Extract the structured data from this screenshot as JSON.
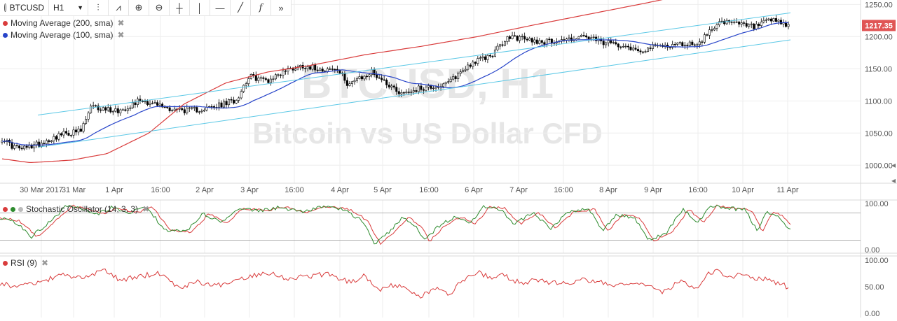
{
  "toolbar": {
    "symbol": "BTCUSD",
    "interval": "H1",
    "tools": [
      "bar-style-icon",
      "indicators-icon",
      "zoom-in-icon",
      "zoom-out-icon",
      "crosshair-icon",
      "vertical-line-icon",
      "horizontal-line-icon",
      "trend-line-icon",
      "fibonacci-icon",
      "forward-icon"
    ]
  },
  "legend": {
    "ma200": "Moving Average (200, sma)",
    "ma100": "Moving Average (100, sma)",
    "stoch": "Stochastic Oscillator (14, 3, 3)",
    "rsi": "RSI (9)",
    "close": "✖"
  },
  "watermark": {
    "line1": "BTCUSD, H1",
    "line2": "Bitcoin vs US Dollar CFD"
  },
  "colors": {
    "candle_up": "#ffffff",
    "candle_down": "#000000",
    "ma200": "#d93c3c",
    "ma100": "#2744c9",
    "channel": "#5bc8e6",
    "stoch_k": "#2e8b2e",
    "stoch_d": "#d93c3c",
    "rsi": "#d93c3c",
    "price_tag": "#e05555",
    "grid": "#eeeeee"
  },
  "chart_data": [
    {
      "type": "candlestick",
      "symbol": "BTCUSD",
      "interval": "H1",
      "x_labels": [
        "30 Mar 2017",
        "31 Mar",
        "1 Apr",
        "16:00",
        "2 Apr",
        "3 Apr",
        "16:00",
        "4 Apr",
        "5 Apr",
        "16:00",
        "6 Apr",
        "7 Apr",
        "16:00",
        "8 Apr",
        "9 Apr",
        "16:00",
        "10 Apr",
        "11 Apr"
      ],
      "y_ticks": [
        1000,
        1050,
        1100,
        1150,
        1200,
        1250
      ],
      "y_tick_labels": [
        "1000.00",
        "1050.00",
        "1100.00",
        "1150.00",
        "1200.00",
        "1250.00"
      ],
      "ylim": [
        972,
        1257
      ],
      "last_price": 1217.35,
      "last_price_label": "1217.35",
      "price_anchors": [
        [
          0,
          1042
        ],
        [
          4,
          1030
        ],
        [
          8,
          1025
        ],
        [
          16,
          1035
        ],
        [
          24,
          1048
        ],
        [
          32,
          1053
        ],
        [
          36,
          1090
        ],
        [
          48,
          1085
        ],
        [
          56,
          1102
        ],
        [
          62,
          1095
        ],
        [
          68,
          1088
        ],
        [
          76,
          1085
        ],
        [
          86,
          1090
        ],
        [
          95,
          1102
        ],
        [
          100,
          1138
        ],
        [
          108,
          1132
        ],
        [
          115,
          1148
        ],
        [
          122,
          1155
        ],
        [
          130,
          1150
        ],
        [
          136,
          1148
        ],
        [
          140,
          1128
        ],
        [
          146,
          1135
        ],
        [
          150,
          1145
        ],
        [
          156,
          1128
        ],
        [
          162,
          1112
        ],
        [
          170,
          1120
        ],
        [
          180,
          1125
        ],
        [
          190,
          1158
        ],
        [
          198,
          1170
        ],
        [
          206,
          1200
        ],
        [
          214,
          1195
        ],
        [
          220,
          1192
        ],
        [
          228,
          1195
        ],
        [
          236,
          1200
        ],
        [
          244,
          1190
        ],
        [
          252,
          1188
        ],
        [
          258,
          1178
        ],
        [
          266,
          1185
        ],
        [
          275,
          1188
        ],
        [
          283,
          1190
        ],
        [
          290,
          1222
        ],
        [
          298,
          1220
        ],
        [
          305,
          1215
        ],
        [
          312,
          1225
        ],
        [
          318,
          1218
        ]
      ],
      "candle_count": 320,
      "ma200_anchors": [
        [
          0,
          1010
        ],
        [
          40,
          1004
        ],
        [
          100,
          1008
        ],
        [
          150,
          1018
        ],
        [
          210,
          1050
        ],
        [
          260,
          1095
        ],
        [
          320,
          1128
        ],
        [
          380,
          1145
        ],
        [
          440,
          1155
        ],
        [
          520,
          1172
        ],
        [
          600,
          1185
        ],
        [
          680,
          1200
        ],
        [
          760,
          1218
        ],
        [
          840,
          1235
        ],
        [
          920,
          1252
        ],
        [
          1000,
          1270
        ],
        [
          1128,
          1300
        ]
      ],
      "channel_upper": {
        "from": [
          1053,
          1078
        ],
        "to": [
          1255,
          1237
        ]
      },
      "channel_lower": {
        "from": [
          1053,
          1028
        ],
        "to": [
          1255,
          1195
        ]
      },
      "series": [
        {
          "name": "Moving Average (200, sma)",
          "color": "#d93c3c"
        },
        {
          "name": "Moving Average (100, sma)",
          "color": "#2744c9"
        }
      ]
    },
    {
      "type": "line",
      "name": "Stochastic Oscillator (14, 3, 3)",
      "y_ticks": [
        0,
        100
      ],
      "y_tick_labels": [
        "0.00",
        "100.00"
      ],
      "levels": [
        20,
        80
      ],
      "ylim": [
        -8,
        108
      ],
      "k_anchors": [
        [
          0,
          68
        ],
        [
          20,
          62
        ],
        [
          45,
          28
        ],
        [
          70,
          60
        ],
        [
          95,
          95
        ],
        [
          120,
          88
        ],
        [
          140,
          78
        ],
        [
          160,
          92
        ],
        [
          185,
          80
        ],
        [
          210,
          92
        ],
        [
          235,
          42
        ],
        [
          265,
          38
        ],
        [
          290,
          78
        ],
        [
          315,
          58
        ],
        [
          340,
          90
        ],
        [
          370,
          85
        ],
        [
          400,
          92
        ],
        [
          430,
          82
        ],
        [
          460,
          93
        ],
        [
          490,
          88
        ],
        [
          515,
          65
        ],
        [
          535,
          12
        ],
        [
          555,
          38
        ],
        [
          575,
          70
        ],
        [
          595,
          48
        ],
        [
          605,
          18
        ],
        [
          625,
          50
        ],
        [
          650,
          72
        ],
        [
          670,
          55
        ],
        [
          690,
          92
        ],
        [
          712,
          90
        ],
        [
          735,
          55
        ],
        [
          760,
          82
        ],
        [
          785,
          45
        ],
        [
          810,
          82
        ],
        [
          840,
          88
        ],
        [
          860,
          40
        ],
        [
          880,
          75
        ],
        [
          905,
          70
        ],
        [
          925,
          20
        ],
        [
          950,
          35
        ],
        [
          975,
          88
        ],
        [
          995,
          58
        ],
        [
          1015,
          95
        ],
        [
          1040,
          90
        ],
        [
          1065,
          86
        ],
        [
          1080,
          40
        ],
        [
          1095,
          82
        ],
        [
          1110,
          72
        ],
        [
          1128,
          42
        ]
      ]
    },
    {
      "type": "line",
      "name": "RSI (9)",
      "y_ticks": [
        0,
        50,
        100
      ],
      "y_tick_labels": [
        "0.00",
        "50.00",
        "100.00"
      ],
      "ylim": [
        -8,
        108
      ],
      "anchors": [
        [
          0,
          55
        ],
        [
          30,
          50
        ],
        [
          60,
          60
        ],
        [
          90,
          72
        ],
        [
          120,
          66
        ],
        [
          150,
          82
        ],
        [
          170,
          62
        ],
        [
          200,
          70
        ],
        [
          230,
          76
        ],
        [
          255,
          48
        ],
        [
          280,
          60
        ],
        [
          310,
          52
        ],
        [
          345,
          66
        ],
        [
          380,
          78
        ],
        [
          410,
          66
        ],
        [
          440,
          70
        ],
        [
          470,
          74
        ],
        [
          500,
          58
        ],
        [
          520,
          72
        ],
        [
          540,
          45
        ],
        [
          560,
          52
        ],
        [
          580,
          48
        ],
        [
          600,
          30
        ],
        [
          620,
          48
        ],
        [
          640,
          35
        ],
        [
          660,
          62
        ],
        [
          680,
          78
        ],
        [
          700,
          66
        ],
        [
          720,
          72
        ],
        [
          740,
          58
        ],
        [
          770,
          62
        ],
        [
          800,
          55
        ],
        [
          830,
          63
        ],
        [
          860,
          58
        ],
        [
          890,
          52
        ],
        [
          920,
          55
        ],
        [
          945,
          38
        ],
        [
          970,
          60
        ],
        [
          995,
          42
        ],
        [
          1010,
          73
        ],
        [
          1020,
          80
        ],
        [
          1040,
          70
        ],
        [
          1060,
          72
        ],
        [
          1080,
          66
        ],
        [
          1100,
          62
        ],
        [
          1115,
          55
        ],
        [
          1125,
          48
        ]
      ]
    }
  ]
}
